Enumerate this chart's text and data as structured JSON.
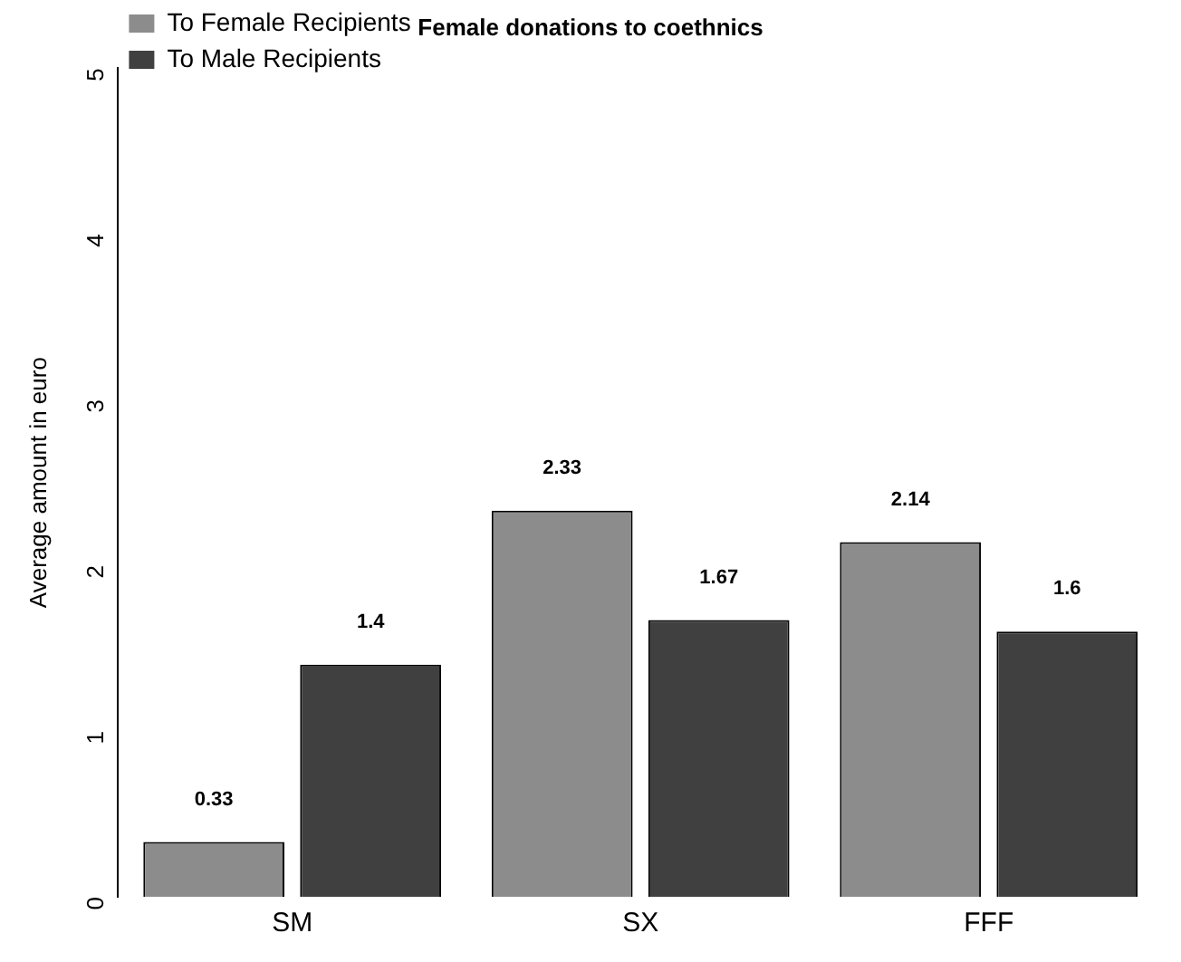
{
  "chart_data": {
    "type": "bar",
    "title": "Female donations to coethnics",
    "ylabel": "Average amount in euro",
    "categories": [
      "SM",
      "SX",
      "FFF"
    ],
    "series": [
      {
        "name": "To Female Recipients",
        "color": "#8c8c8c",
        "values": [
          0.33,
          2.33,
          2.14
        ]
      },
      {
        "name": "To Male Recipients",
        "color": "#404040",
        "values": [
          1.4,
          1.67,
          1.6
        ]
      }
    ],
    "ylim": [
      0,
      5
    ],
    "yticks": [
      0,
      1,
      2,
      3,
      4,
      5
    ],
    "grid": false,
    "legend": "top left",
    "data_labels": true
  }
}
